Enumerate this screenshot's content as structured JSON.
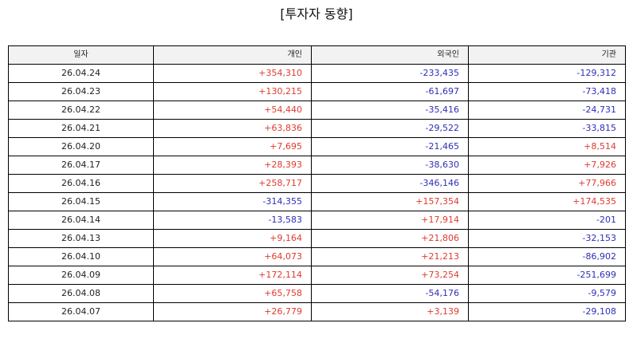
{
  "title": "[투자자 동향]",
  "colors": {
    "positive": "#e03a2f",
    "negative": "#2e2eb8",
    "header_bg": "#f2f2f2",
    "border": "#000000"
  },
  "table": {
    "headers": [
      "일자",
      "개인",
      "외국인",
      "기관"
    ],
    "rows": [
      {
        "date": "26.04.24",
        "individual": "+354,310",
        "foreign": "-233,435",
        "institution": "-129,312"
      },
      {
        "date": "26.04.23",
        "individual": "+130,215",
        "foreign": "-61,697",
        "institution": "-73,418"
      },
      {
        "date": "26.04.22",
        "individual": "+54,440",
        "foreign": "-35,416",
        "institution": "-24,731"
      },
      {
        "date": "26.04.21",
        "individual": "+63,836",
        "foreign": "-29,522",
        "institution": "-33,815"
      },
      {
        "date": "26.04.20",
        "individual": "+7,695",
        "foreign": "-21,465",
        "institution": "+8,514"
      },
      {
        "date": "26.04.17",
        "individual": "+28,393",
        "foreign": "-38,630",
        "institution": "+7,926"
      },
      {
        "date": "26.04.16",
        "individual": "+258,717",
        "foreign": "-346,146",
        "institution": "+77,966"
      },
      {
        "date": "26.04.15",
        "individual": "-314,355",
        "foreign": "+157,354",
        "institution": "+174,535"
      },
      {
        "date": "26.04.14",
        "individual": "-13,583",
        "foreign": "+17,914",
        "institution": "-201"
      },
      {
        "date": "26.04.13",
        "individual": "+9,164",
        "foreign": "+21,806",
        "institution": "-32,153"
      },
      {
        "date": "26.04.10",
        "individual": "+64,073",
        "foreign": "+21,213",
        "institution": "-86,902"
      },
      {
        "date": "26.04.09",
        "individual": "+172,114",
        "foreign": "+73,254",
        "institution": "-251,699"
      },
      {
        "date": "26.04.08",
        "individual": "+65,758",
        "foreign": "-54,176",
        "institution": "-9,579"
      },
      {
        "date": "26.04.07",
        "individual": "+26,779",
        "foreign": "+3,139",
        "institution": "-29,108"
      }
    ]
  }
}
